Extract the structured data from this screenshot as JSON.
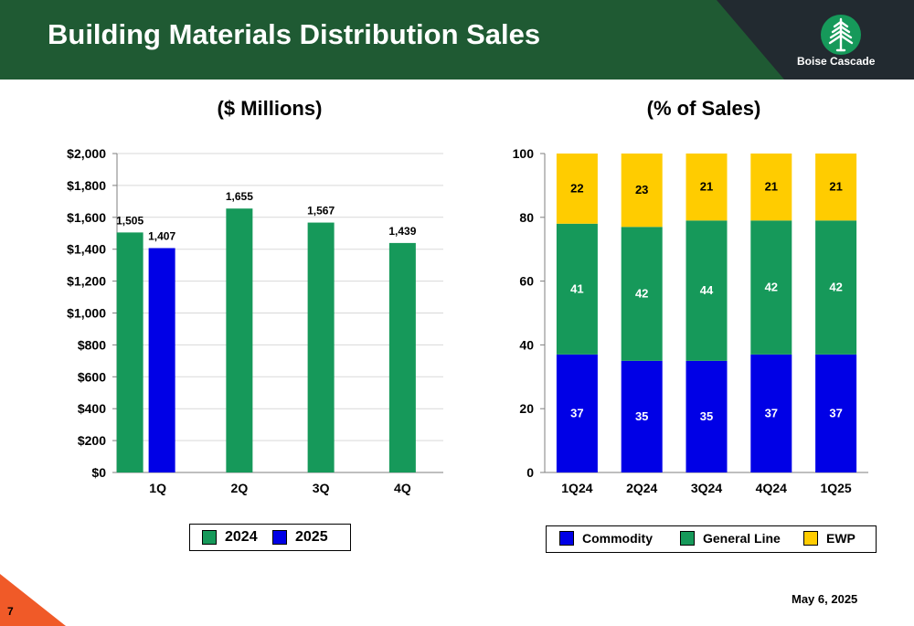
{
  "header": {
    "title": "Building Materials Distribution Sales"
  },
  "logo": {
    "text": "Boise Cascade"
  },
  "colors": {
    "header_green": "#1f5a33",
    "header_dark": "#222a30",
    "green": "#16995a",
    "blue": "#0000e6",
    "yellow": "#ffcc00",
    "accent_orange": "#f05a28"
  },
  "chart_data": [
    {
      "type": "bar",
      "title": "($ Millions)",
      "categories": [
        "1Q",
        "2Q",
        "3Q",
        "4Q"
      ],
      "ylim": [
        0,
        2000
      ],
      "yticks": [
        0,
        200,
        400,
        600,
        800,
        1000,
        1200,
        1400,
        1600,
        1800,
        2000
      ],
      "ytick_labels": [
        "$0",
        "$200",
        "$400",
        "$600",
        "$800",
        "$1,000",
        "$1,200",
        "$1,400",
        "$1,600",
        "$1,800",
        "$2,000"
      ],
      "grid": true,
      "legend": "bottom",
      "series": [
        {
          "name": "2024",
          "color": "#16995a",
          "values": [
            1505,
            1655,
            1567,
            1439
          ],
          "labels": [
            "1,505",
            "1,655",
            "1,567",
            "1,439"
          ]
        },
        {
          "name": "2025",
          "color": "#0000e6",
          "values": [
            1407,
            null,
            null,
            null
          ],
          "labels": [
            "1,407",
            "",
            "",
            ""
          ]
        }
      ]
    },
    {
      "type": "bar",
      "stacked": true,
      "title": "(% of Sales)",
      "categories": [
        "1Q24",
        "2Q24",
        "3Q24",
        "4Q24",
        "1Q25"
      ],
      "ylim": [
        0,
        100
      ],
      "yticks": [
        0,
        20,
        40,
        60,
        80,
        100
      ],
      "ytick_labels": [
        "0",
        "20",
        "40",
        "60",
        "80",
        "100"
      ],
      "grid": false,
      "legend": "bottom",
      "series": [
        {
          "name": "Commodity",
          "color": "#0000e6",
          "label_color": "#ffffff",
          "values": [
            37,
            35,
            35,
            37,
            37
          ]
        },
        {
          "name": "General Line",
          "color": "#16995a",
          "label_color": "#ffffff",
          "values": [
            41,
            42,
            44,
            42,
            42
          ]
        },
        {
          "name": "EWP",
          "color": "#ffcc00",
          "label_color": "#000000",
          "values": [
            22,
            23,
            21,
            21,
            21
          ]
        }
      ]
    }
  ],
  "footer": {
    "page_number": "7",
    "date": "May 6, 2025"
  }
}
